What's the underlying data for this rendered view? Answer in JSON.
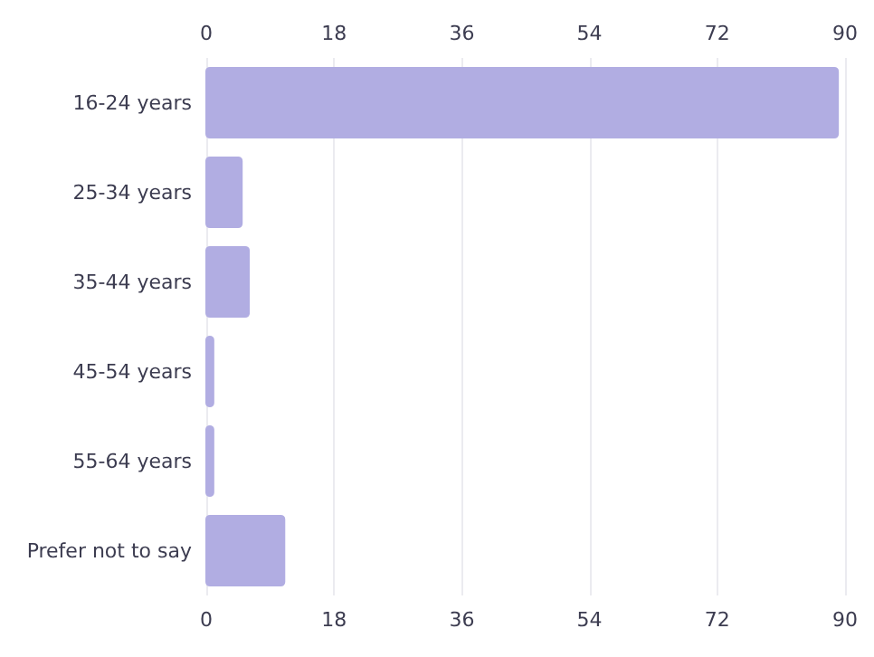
{
  "chart_data": {
    "type": "bar",
    "orientation": "horizontal",
    "categories": [
      "16-24 years",
      "25-34 years",
      "35-44 years",
      "45-54 years",
      "55-64 years",
      "Prefer not to say"
    ],
    "values": [
      89,
      5,
      6,
      1,
      1,
      11
    ],
    "color": "#b1ade2",
    "xlim": [
      0,
      90
    ],
    "xticks": [
      0,
      18,
      36,
      54,
      72,
      90
    ],
    "x2lim": [
      0,
      90
    ],
    "x2ticks": [
      0,
      18,
      36,
      54,
      72,
      90
    ],
    "grid": "x"
  }
}
